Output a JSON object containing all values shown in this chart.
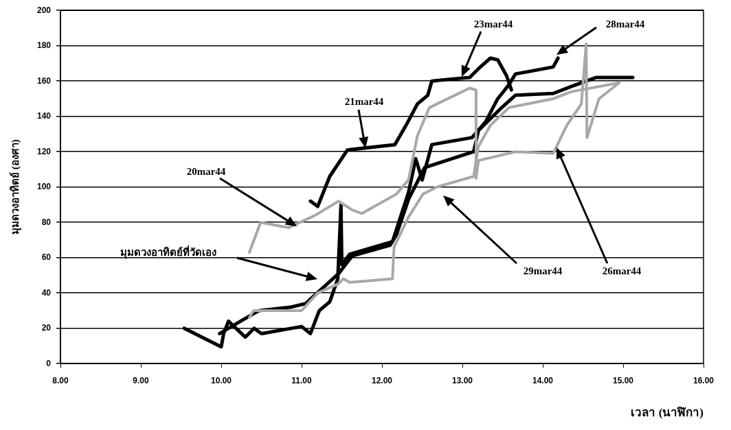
{
  "chart_data": {
    "type": "line",
    "xlabel": "เวลา (นาฬิกา)",
    "ylabel": "มุมดวงอาทิตย์ (องศา)",
    "xlim": [
      8,
      16
    ],
    "xticks": [
      {
        "value": 8,
        "label": "8.00"
      },
      {
        "value": 9,
        "label": "9.00"
      },
      {
        "value": 10,
        "label": "10.00"
      },
      {
        "value": 11,
        "label": "11.00"
      },
      {
        "value": 12,
        "label": "12.00"
      },
      {
        "value": 13,
        "label": "13.00"
      },
      {
        "value": 14,
        "label": "14.00"
      },
      {
        "value": 15,
        "label": "15.00"
      },
      {
        "value": 16,
        "label": "16.00"
      }
    ],
    "ylim": [
      0,
      200
    ],
    "yticks": [
      0,
      20,
      40,
      60,
      80,
      100,
      120,
      140,
      160,
      180,
      200
    ],
    "grid": "y",
    "legend": false,
    "marker": "none",
    "line_style": "solid",
    "series": [
      {
        "color": "#a8a8a8",
        "x": [
          10.35,
          10.49,
          10.84,
          11.17,
          11.46,
          11.63,
          11.75,
          12.18,
          12.33,
          12.44,
          12.59,
          13.09,
          13.17,
          13.17
        ],
        "values": [
          63,
          80,
          77,
          84,
          92,
          87,
          85,
          96,
          104,
          129,
          145,
          156,
          155,
          105
        ]
      },
      {
        "color": "#a8a8a8",
        "x": [
          10.35,
          10.4,
          11.0,
          11.2,
          11.45,
          11.52,
          11.6,
          12.13,
          12.15,
          12.33,
          12.51,
          12.68,
          13.14,
          13.2,
          13.35,
          13.58,
          14.13,
          14.36,
          14.95
        ],
        "values": [
          26,
          30,
          30,
          40,
          45,
          48,
          46,
          48,
          66,
          83,
          96,
          100,
          106,
          123,
          135,
          145,
          150,
          154,
          159
        ]
      },
      {
        "color": "#a8a8a8",
        "x": [
          13.17,
          13.2,
          13.66,
          14.13,
          14.3,
          14.48,
          14.54,
          14.55,
          14.7,
          14.95
        ],
        "values": [
          105,
          115,
          120,
          119,
          135,
          147,
          181,
          128,
          150,
          159
        ]
      },
      {
        "color": "#000000",
        "x": [
          11.11,
          11.2,
          11.35,
          11.57,
          12.16,
          12.3,
          12.44,
          12.57,
          12.62,
          12.83,
          13.09,
          13.2,
          13.35,
          13.44,
          13.55,
          13.61
        ],
        "values": [
          92,
          89,
          106,
          121,
          124,
          135,
          147,
          152,
          160,
          161,
          162,
          167,
          173,
          172,
          163,
          155
        ]
      },
      {
        "color": "#000000",
        "x": [
          9.54,
          10.0,
          10.03,
          10.09,
          10.3,
          10.41,
          10.5,
          11.0,
          11.11,
          11.22,
          11.35,
          11.45,
          11.49,
          11.5,
          11.6,
          12.13,
          12.33,
          12.42,
          12.5,
          12.62,
          13.12,
          13.29,
          13.44,
          13.58,
          13.66,
          14.13,
          14.19
        ],
        "values": [
          20,
          9.5,
          17,
          24,
          15,
          20,
          17,
          21,
          17,
          30,
          35,
          48,
          90,
          56,
          62,
          69,
          97,
          116,
          104,
          124,
          128,
          137,
          150,
          158,
          164,
          168,
          173
        ]
      },
      {
        "color": "#000000",
        "x": [
          9.98,
          10.24,
          10.47,
          10.87,
          11.05,
          11.46,
          11.63,
          12.1,
          12.18,
          12.33,
          12.53,
          13.14,
          13.2,
          13.49,
          13.66,
          14.13,
          14.36,
          14.66,
          15.12
        ],
        "values": [
          17,
          24,
          30,
          32,
          34,
          51,
          61,
          67,
          73,
          93,
          111,
          120,
          132,
          145,
          152,
          153,
          157,
          162,
          162
        ]
      }
    ],
    "annotations": [
      "23mar44",
      "28mar44",
      "21mar44",
      "20mar44",
      "26mar44",
      "29mar44",
      "มุมดวงอาทิตย์ที่วัดเอง"
    ]
  }
}
